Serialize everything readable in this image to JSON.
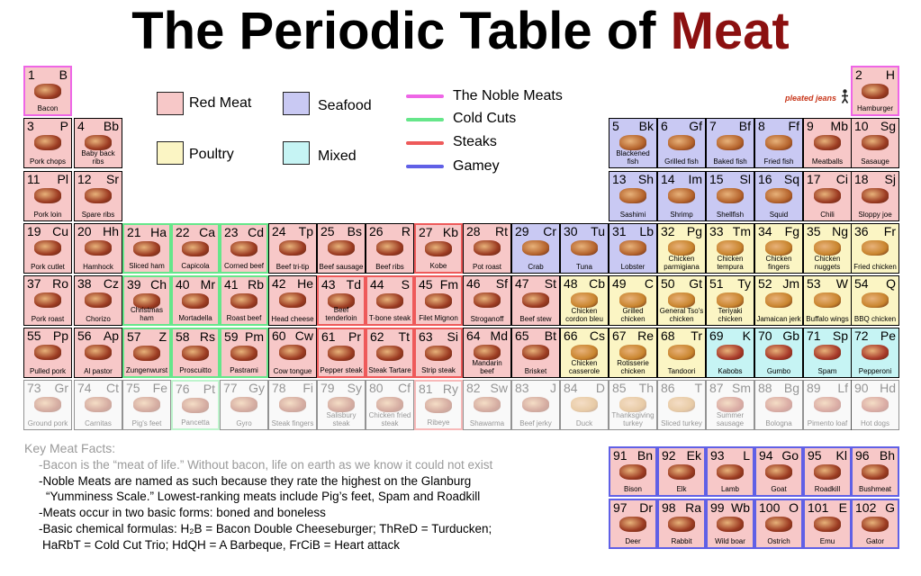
{
  "title": {
    "prefix": "The Periodic Table of ",
    "accent": "Meat",
    "accent_color": "#8b1010"
  },
  "credit": "pleated jeans",
  "legend": {
    "categories": [
      {
        "label": "Red Meat",
        "color": "#f7c8c8"
      },
      {
        "label": "Seafood",
        "color": "#c9c9f3"
      },
      {
        "label": "Poultry",
        "color": "#fbf5c4"
      },
      {
        "label": "Mixed",
        "color": "#c6f4f4"
      }
    ],
    "lines": [
      {
        "label": "The Noble Meats",
        "color": "#ee66e6"
      },
      {
        "label": "Cold Cuts",
        "color": "#66e68a"
      },
      {
        "label": "Steaks",
        "color": "#ee5a5a"
      },
      {
        "label": "Gamey",
        "color": "#6060e6"
      }
    ]
  },
  "colors": {
    "red": "#f7c8c8",
    "sea": "#c9c9f3",
    "poultry": "#fbf5c4",
    "mixed": "#c6f4f4",
    "faded_bg": "#f2f2f2"
  },
  "elements": [
    {
      "num": "1",
      "sym": "B",
      "name": "Bacon",
      "type": "red",
      "group": "noble",
      "icon": "bacon-icon"
    },
    {
      "num": "2",
      "sym": "H",
      "name": "Hamburger",
      "type": "red",
      "group": "noble",
      "icon": "hamburger-icon"
    },
    {
      "num": "3",
      "sym": "P",
      "name": "Pork chops",
      "type": "red",
      "icon": "pork-chop-icon"
    },
    {
      "num": "4",
      "sym": "Bb",
      "name": "Baby back ribs",
      "type": "red",
      "icon": "ribs-icon"
    },
    {
      "num": "5",
      "sym": "Bk",
      "name": "Blackened fish",
      "type": "sea",
      "icon": "fish-icon"
    },
    {
      "num": "6",
      "sym": "Gf",
      "name": "Grilled fish",
      "type": "sea",
      "icon": "fish-icon"
    },
    {
      "num": "7",
      "sym": "Bf",
      "name": "Baked fish",
      "type": "sea",
      "icon": "fish-icon"
    },
    {
      "num": "8",
      "sym": "Ff",
      "name": "Fried fish",
      "type": "sea",
      "icon": "fish-icon"
    },
    {
      "num": "9",
      "sym": "Mb",
      "name": "Meatballs",
      "type": "red",
      "icon": "meatballs-icon"
    },
    {
      "num": "10",
      "sym": "Sg",
      "name": "Sasauge",
      "type": "red",
      "icon": "sausage-icon"
    },
    {
      "num": "11",
      "sym": "Pl",
      "name": "Pork loin",
      "type": "red",
      "icon": "pork-loin-icon"
    },
    {
      "num": "12",
      "sym": "Sr",
      "name": "Spare ribs",
      "type": "red",
      "icon": "ribs-icon"
    },
    {
      "num": "13",
      "sym": "Sh",
      "name": "Sashimi",
      "type": "sea",
      "icon": "sashimi-icon"
    },
    {
      "num": "14",
      "sym": "Im",
      "name": "Shrimp",
      "type": "sea",
      "icon": "shrimp-icon"
    },
    {
      "num": "15",
      "sym": "Sl",
      "name": "Shellfish",
      "type": "sea",
      "icon": "shellfish-icon"
    },
    {
      "num": "16",
      "sym": "Sq",
      "name": "Squid",
      "type": "sea",
      "icon": "squid-icon"
    },
    {
      "num": "17",
      "sym": "Ci",
      "name": "Chili",
      "type": "red",
      "icon": "chili-icon"
    },
    {
      "num": "18",
      "sym": "Sj",
      "name": "Sloppy joe",
      "type": "red",
      "icon": "sandwich-icon"
    },
    {
      "num": "19",
      "sym": "Cu",
      "name": "Pork cutlet",
      "type": "red",
      "icon": "cutlet-icon"
    },
    {
      "num": "20",
      "sym": "Hh",
      "name": "Hamhock",
      "type": "red",
      "icon": "hamhock-icon"
    },
    {
      "num": "21",
      "sym": "Ha",
      "name": "Sliced ham",
      "type": "red",
      "group": "cold",
      "icon": "ham-icon"
    },
    {
      "num": "22",
      "sym": "Ca",
      "name": "Capicola",
      "type": "red",
      "group": "cold",
      "icon": "capicola-icon"
    },
    {
      "num": "23",
      "sym": "Cd",
      "name": "Corned beef",
      "type": "red",
      "group": "cold",
      "icon": "corned-beef-icon"
    },
    {
      "num": "24",
      "sym": "Tp",
      "name": "Beef tri-tip",
      "type": "red",
      "icon": "beef-icon"
    },
    {
      "num": "25",
      "sym": "Bs",
      "name": "Beef sausage",
      "type": "red",
      "icon": "sausage-icon"
    },
    {
      "num": "26",
      "sym": "R",
      "name": "Beef ribs",
      "type": "red",
      "icon": "ribs-icon"
    },
    {
      "num": "27",
      "sym": "Kb",
      "name": "Kobe",
      "type": "red",
      "group": "steak",
      "icon": "steak-icon"
    },
    {
      "num": "28",
      "sym": "Rt",
      "name": "Pot roast",
      "type": "red",
      "icon": "pot-roast-icon"
    },
    {
      "num": "29",
      "sym": "Cr",
      "name": "Crab",
      "type": "sea",
      "icon": "crab-icon"
    },
    {
      "num": "30",
      "sym": "Tu",
      "name": "Tuna",
      "type": "sea",
      "icon": "tuna-icon"
    },
    {
      "num": "31",
      "sym": "Lb",
      "name": "Lobster",
      "type": "sea",
      "icon": "lobster-icon"
    },
    {
      "num": "32",
      "sym": "Pg",
      "name": "Chicken parmigiana",
      "type": "poultry",
      "icon": "chicken-icon"
    },
    {
      "num": "33",
      "sym": "Tm",
      "name": "Chicken tempura",
      "type": "poultry",
      "icon": "chicken-icon"
    },
    {
      "num": "34",
      "sym": "Fg",
      "name": "Chicken fingers",
      "type": "poultry",
      "icon": "chicken-icon"
    },
    {
      "num": "35",
      "sym": "Ng",
      "name": "Chicken nuggets",
      "type": "poultry",
      "icon": "nuggets-icon"
    },
    {
      "num": "36",
      "sym": "Fr",
      "name": "Fried chicken",
      "type": "poultry",
      "icon": "fried-chicken-icon"
    },
    {
      "num": "37",
      "sym": "Ro",
      "name": "Pork roast",
      "type": "red",
      "icon": "roast-icon"
    },
    {
      "num": "38",
      "sym": "Cz",
      "name": "Chorizo",
      "type": "red",
      "icon": "chorizo-icon"
    },
    {
      "num": "39",
      "sym": "Ch",
      "name": "Christmas ham",
      "type": "red",
      "group": "cold",
      "icon": "ham-icon"
    },
    {
      "num": "40",
      "sym": "Mr",
      "name": "Mortadella",
      "type": "red",
      "group": "cold",
      "icon": "mortadella-icon"
    },
    {
      "num": "41",
      "sym": "Rb",
      "name": "Roast beef",
      "type": "red",
      "group": "cold",
      "icon": "roast-beef-icon"
    },
    {
      "num": "42",
      "sym": "He",
      "name": "Head cheese",
      "type": "red",
      "icon": "head-cheese-icon"
    },
    {
      "num": "43",
      "sym": "Td",
      "name": "Beef tenderloin",
      "type": "red",
      "group": "steak",
      "icon": "steak-icon"
    },
    {
      "num": "44",
      "sym": "S",
      "name": "T-bone steak",
      "type": "red",
      "group": "steak",
      "icon": "steak-icon"
    },
    {
      "num": "45",
      "sym": "Fm",
      "name": "Filet Mignon",
      "type": "red",
      "group": "steak",
      "icon": "steak-icon"
    },
    {
      "num": "46",
      "sym": "Sf",
      "name": "Stroganoff",
      "type": "red",
      "icon": "stroganoff-icon"
    },
    {
      "num": "47",
      "sym": "St",
      "name": "Beef stew",
      "type": "red",
      "icon": "stew-icon"
    },
    {
      "num": "48",
      "sym": "Cb",
      "name": "Chicken cordon bleu",
      "type": "poultry",
      "icon": "chicken-icon"
    },
    {
      "num": "49",
      "sym": "C",
      "name": "Grilled chicken",
      "type": "poultry",
      "icon": "chicken-icon"
    },
    {
      "num": "50",
      "sym": "Gt",
      "name": "General Tso's chicken",
      "type": "poultry",
      "icon": "chicken-icon"
    },
    {
      "num": "51",
      "sym": "Ty",
      "name": "Teriyaki chicken",
      "type": "poultry",
      "icon": "chicken-icon"
    },
    {
      "num": "52",
      "sym": "Jm",
      "name": "Jamaican jerk",
      "type": "poultry",
      "icon": "jerk-icon"
    },
    {
      "num": "53",
      "sym": "W",
      "name": "Buffalo wings",
      "type": "poultry",
      "icon": "wings-icon"
    },
    {
      "num": "54",
      "sym": "Q",
      "name": "BBQ chicken",
      "type": "poultry",
      "icon": "bbq-chicken-icon"
    },
    {
      "num": "55",
      "sym": "Pp",
      "name": "Pulled pork",
      "type": "red",
      "icon": "pulled-pork-icon"
    },
    {
      "num": "56",
      "sym": "Ap",
      "name": "Al pastor",
      "type": "red",
      "icon": "al-pastor-icon"
    },
    {
      "num": "57",
      "sym": "Z",
      "name": "Zungenwurst",
      "type": "red",
      "group": "cold",
      "icon": "wurst-icon"
    },
    {
      "num": "58",
      "sym": "Rs",
      "name": "Proscuitto",
      "type": "red",
      "group": "cold",
      "icon": "prosciutto-icon"
    },
    {
      "num": "59",
      "sym": "Pm",
      "name": "Pastrami",
      "type": "red",
      "group": "cold",
      "icon": "pastrami-icon"
    },
    {
      "num": "60",
      "sym": "Cw",
      "name": "Cow tongue",
      "type": "red",
      "icon": "tongue-icon"
    },
    {
      "num": "61",
      "sym": "Pr",
      "name": "Pepper steak",
      "type": "red",
      "group": "steak",
      "icon": "steak-icon"
    },
    {
      "num": "62",
      "sym": "Tt",
      "name": "Steak Tartare",
      "type": "red",
      "group": "steak",
      "icon": "steak-icon"
    },
    {
      "num": "63",
      "sym": "Si",
      "name": "Strip steak",
      "type": "red",
      "group": "steak",
      "icon": "steak-icon"
    },
    {
      "num": "64",
      "sym": "Md",
      "name": "Mandarin beef",
      "type": "red",
      "icon": "mandarin-beef-icon"
    },
    {
      "num": "65",
      "sym": "Bt",
      "name": "Brisket",
      "type": "red",
      "icon": "brisket-icon"
    },
    {
      "num": "66",
      "sym": "Cs",
      "name": "Chicken casserole",
      "type": "poultry",
      "icon": "casserole-icon"
    },
    {
      "num": "67",
      "sym": "Re",
      "name": "Rotisserie chicken",
      "type": "poultry",
      "icon": "rotisserie-icon"
    },
    {
      "num": "68",
      "sym": "Tr",
      "name": "Tandoori",
      "type": "poultry",
      "icon": "tandoori-icon"
    },
    {
      "num": "69",
      "sym": "K",
      "name": "Kabobs",
      "type": "mixed",
      "icon": "kabob-icon"
    },
    {
      "num": "70",
      "sym": "Gb",
      "name": "Gumbo",
      "type": "mixed",
      "icon": "gumbo-icon"
    },
    {
      "num": "71",
      "sym": "Sp",
      "name": "Spam",
      "type": "mixed",
      "icon": "spam-icon"
    },
    {
      "num": "72",
      "sym": "Pe",
      "name": "Pepperoni",
      "type": "mixed",
      "icon": "pepperoni-icon"
    },
    {
      "num": "73",
      "sym": "Gr",
      "name": "Ground pork",
      "type": "red",
      "icon": "ground-pork-icon"
    },
    {
      "num": "74",
      "sym": "Ct",
      "name": "Carnitas",
      "type": "red",
      "icon": "carnitas-icon"
    },
    {
      "num": "75",
      "sym": "Fe",
      "name": "Pig's feet",
      "type": "red",
      "icon": "pigs-feet-icon"
    },
    {
      "num": "76",
      "sym": "Pt",
      "name": "Pancetta",
      "type": "red",
      "group": "cold",
      "icon": "pancetta-icon"
    },
    {
      "num": "77",
      "sym": "Gy",
      "name": "Gyro",
      "type": "red",
      "icon": "gyro-icon"
    },
    {
      "num": "78",
      "sym": "Fi",
      "name": "Steak fingers",
      "type": "red",
      "icon": "steak-fingers-icon"
    },
    {
      "num": "79",
      "sym": "Sy",
      "name": "Salisbury steak",
      "type": "red",
      "icon": "salisbury-icon"
    },
    {
      "num": "80",
      "sym": "Cf",
      "name": "Chicken fried steak",
      "type": "red",
      "icon": "chicken-fried-steak-icon"
    },
    {
      "num": "81",
      "sym": "Ry",
      "name": "Ribeye",
      "type": "red",
      "group": "steak",
      "icon": "ribeye-icon"
    },
    {
      "num": "82",
      "sym": "Sw",
      "name": "Shawarma",
      "type": "red",
      "icon": "shawarma-icon"
    },
    {
      "num": "83",
      "sym": "J",
      "name": "Beef jerky",
      "type": "red",
      "icon": "jerky-icon"
    },
    {
      "num": "84",
      "sym": "D",
      "name": "Duck",
      "type": "poultry",
      "icon": "duck-icon"
    },
    {
      "num": "85",
      "sym": "Th",
      "name": "Thanksgiving turkey",
      "type": "poultry",
      "icon": "turkey-icon"
    },
    {
      "num": "86",
      "sym": "T",
      "name": "Sliced turkey",
      "type": "poultry",
      "icon": "turkey-icon"
    },
    {
      "num": "87",
      "sym": "Sm",
      "name": "Summer sausage",
      "type": "mixed",
      "icon": "sausage-icon"
    },
    {
      "num": "88",
      "sym": "Bg",
      "name": "Bologna",
      "type": "mixed",
      "icon": "bologna-icon"
    },
    {
      "num": "89",
      "sym": "Lf",
      "name": "Pimento loaf",
      "type": "mixed",
      "icon": "loaf-icon"
    },
    {
      "num": "90",
      "sym": "Hd",
      "name": "Hot dogs",
      "type": "mixed",
      "icon": "hotdog-icon"
    },
    {
      "num": "91",
      "sym": "Bn",
      "name": "Bison",
      "type": "red",
      "group": "gamey",
      "icon": "bison-icon"
    },
    {
      "num": "92",
      "sym": "Ek",
      "name": "Elk",
      "type": "red",
      "group": "gamey",
      "icon": "elk-icon"
    },
    {
      "num": "93",
      "sym": "L",
      "name": "Lamb",
      "type": "red",
      "group": "gamey",
      "icon": "lamb-icon"
    },
    {
      "num": "94",
      "sym": "Go",
      "name": "Goat",
      "type": "red",
      "group": "gamey",
      "icon": "goat-icon"
    },
    {
      "num": "95",
      "sym": "Kl",
      "name": "Roadkill",
      "type": "red",
      "group": "gamey",
      "icon": "roadkill-icon"
    },
    {
      "num": "96",
      "sym": "Bh",
      "name": "Bushmeat",
      "type": "red",
      "group": "gamey",
      "icon": "bushmeat-icon"
    },
    {
      "num": "97",
      "sym": "Dr",
      "name": "Deer",
      "type": "red",
      "group": "gamey",
      "icon": "deer-icon"
    },
    {
      "num": "98",
      "sym": "Ra",
      "name": "Rabbit",
      "type": "red",
      "group": "gamey",
      "icon": "rabbit-icon"
    },
    {
      "num": "99",
      "sym": "Wb",
      "name": "Wild boar",
      "type": "red",
      "group": "gamey",
      "icon": "boar-icon"
    },
    {
      "num": "100",
      "sym": "O",
      "name": "Ostrich",
      "type": "red",
      "group": "gamey",
      "icon": "ostrich-icon"
    },
    {
      "num": "101",
      "sym": "E",
      "name": "Emu",
      "type": "red",
      "group": "gamey",
      "icon": "emu-icon"
    },
    {
      "num": "102",
      "sym": "G",
      "name": "Gator",
      "type": "red",
      "group": "gamey",
      "icon": "gator-icon"
    }
  ],
  "facts": {
    "heading": "Key Meat Facts:",
    "lines": [
      "-Bacon is the “meat of life.” Without bacon, life on earth as we know it could not exist",
      "-Noble Meats are named as such because they rate the highest on the Glanburg",
      "“Yumminess Scale.” Lowest-ranking meats include Pig’s feet, Spam and Roadkill",
      "-Meats occur in two basic forms: boned and boneless",
      "-Basic chemical formulas: H₂B = Bacon Double Cheeseburger; ThReD = Turducken;",
      "HaRbT = Cold Cut Trio; HdQH = A Barbeque, FrCiB = Heart attack"
    ]
  }
}
